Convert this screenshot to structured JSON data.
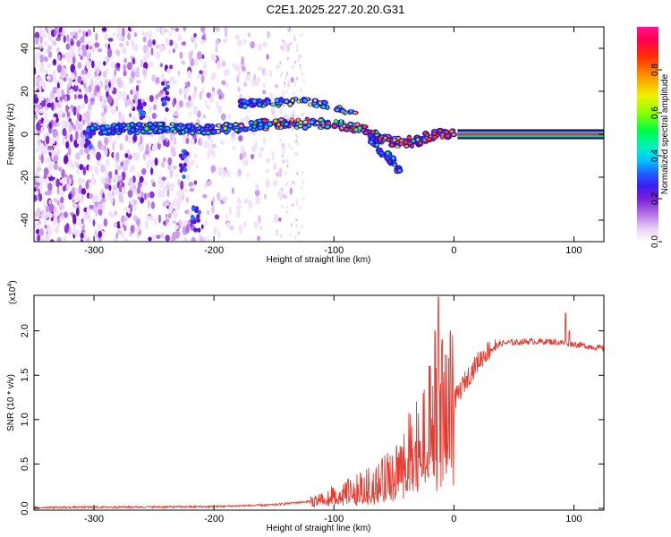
{
  "figure_title": "C2E1.2025.227.20.20.G31",
  "chart_data": [
    {
      "type": "heatmap",
      "xlabel": "Height of straight line (km)",
      "ylabel": "Frequency (Hz)",
      "xlim": [
        -350,
        125
      ],
      "ylim": [
        -50,
        50
      ],
      "x_ticks": [
        "-300",
        "-200",
        "-100",
        "0",
        "100"
      ],
      "y_ticks": [
        "-40",
        "-20",
        "0",
        "20",
        "40"
      ],
      "colorbar_label": "Normalized spectral amplitude",
      "colorbar_ticks": [
        "0.0",
        "0.2",
        "0.4",
        "0.6",
        "0.8"
      ],
      "colorbar_range": [
        0,
        1
      ],
      "features": {
        "noise_region_x": [
          -350,
          -140
        ],
        "signal_curve": [
          {
            "x": -305,
            "y": 2
          },
          {
            "x": -240,
            "y": 3
          },
          {
            "x": -200,
            "y": 2
          },
          {
            "x": -170,
            "y": 4
          },
          {
            "x": -140,
            "y": 5
          },
          {
            "x": -110,
            "y": 5
          },
          {
            "x": -90,
            "y": 4
          },
          {
            "x": -75,
            "y": 2
          },
          {
            "x": -60,
            "y": -2
          },
          {
            "x": -45,
            "y": -4
          },
          {
            "x": -30,
            "y": -3
          },
          {
            "x": -15,
            "y": 0
          },
          {
            "x": 0,
            "y": 0
          }
        ],
        "upper_branch": [
          {
            "x": -180,
            "y": 14
          },
          {
            "x": -150,
            "y": 15
          },
          {
            "x": -120,
            "y": 15
          },
          {
            "x": -100,
            "y": 13
          },
          {
            "x": -80,
            "y": 10
          }
        ],
        "lower_branch": [
          {
            "x": -70,
            "y": -2
          },
          {
            "x": -60,
            "y": -8
          },
          {
            "x": -50,
            "y": -13
          },
          {
            "x": -45,
            "y": -18
          }
        ],
        "tone_band_x": [
          3,
          125
        ],
        "tone_band_freq": 0
      }
    },
    {
      "type": "line",
      "xlabel": "Height of straight line (km)",
      "ylabel": "SNR (10 * v/v)",
      "multiplier_label": "(x10",
      "multiplier_exp": "4",
      "multiplier_close": ")",
      "xlim": [
        -350,
        125
      ],
      "ylim": [
        -0.02,
        2.4
      ],
      "x_ticks": [
        "-300",
        "-200",
        "-100",
        "0",
        "100"
      ],
      "y_ticks": [
        "0.0",
        "0.5",
        "1.0",
        "1.5",
        "2.0"
      ],
      "color": "#e63b30",
      "series_envelope": [
        {
          "x": -350,
          "y": 0.01
        },
        {
          "x": -200,
          "y": 0.02
        },
        {
          "x": -150,
          "y": 0.04
        },
        {
          "x": -120,
          "y": 0.08
        },
        {
          "x": -100,
          "y": 0.15
        },
        {
          "x": -80,
          "y": 0.22
        },
        {
          "x": -60,
          "y": 0.32
        },
        {
          "x": -45,
          "y": 0.5
        },
        {
          "x": -30,
          "y": 0.75
        },
        {
          "x": -20,
          "y": 0.95
        },
        {
          "x": -12,
          "y": 1.1
        },
        {
          "x": -5,
          "y": 1.15
        },
        {
          "x": 0,
          "y": 1.2
        },
        {
          "x": 10,
          "y": 1.45
        },
        {
          "x": 20,
          "y": 1.65
        },
        {
          "x": 30,
          "y": 1.8
        },
        {
          "x": 40,
          "y": 1.86
        },
        {
          "x": 60,
          "y": 1.88
        },
        {
          "x": 80,
          "y": 1.88
        },
        {
          "x": 100,
          "y": 1.85
        },
        {
          "x": 125,
          "y": 1.8
        }
      ],
      "spikes": [
        {
          "x": -13,
          "y": 2.38
        },
        {
          "x": -16,
          "y": 2.0
        },
        {
          "x": -10,
          "y": 1.9
        },
        {
          "x": -20,
          "y": 1.6
        },
        {
          "x": 93,
          "y": 2.2
        },
        {
          "x": 96,
          "y": 2.0
        }
      ]
    }
  ]
}
